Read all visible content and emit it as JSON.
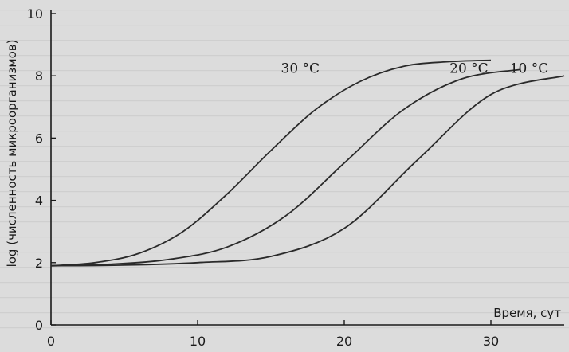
{
  "chart_data": {
    "type": "line",
    "title": "",
    "xlabel": "Время, сут",
    "ylabel": "log (численность микроорганизмов)",
    "xlim": [
      0,
      35
    ],
    "ylim": [
      0,
      10
    ],
    "xticks": [
      0,
      10,
      20,
      30
    ],
    "yticks": [
      0,
      2,
      4,
      6,
      8,
      10
    ],
    "grid": false,
    "series": [
      {
        "name": "30 °C",
        "x": [
          0,
          3,
          6,
          9,
          12,
          15,
          18,
          21,
          24,
          27,
          30
        ],
        "y": [
          1.9,
          2.0,
          2.3,
          3.0,
          4.2,
          5.6,
          6.9,
          7.8,
          8.3,
          8.45,
          8.5
        ]
      },
      {
        "name": "20 °C",
        "x": [
          0,
          4,
          8,
          12,
          16,
          20,
          24,
          28,
          32
        ],
        "y": [
          1.9,
          1.95,
          2.1,
          2.5,
          3.5,
          5.2,
          6.9,
          7.9,
          8.2
        ]
      },
      {
        "name": "10 °C",
        "x": [
          0,
          5,
          10,
          15,
          20,
          25,
          30,
          35
        ],
        "y": [
          1.9,
          1.92,
          2.0,
          2.2,
          3.1,
          5.3,
          7.4,
          8.0
        ]
      }
    ]
  }
}
